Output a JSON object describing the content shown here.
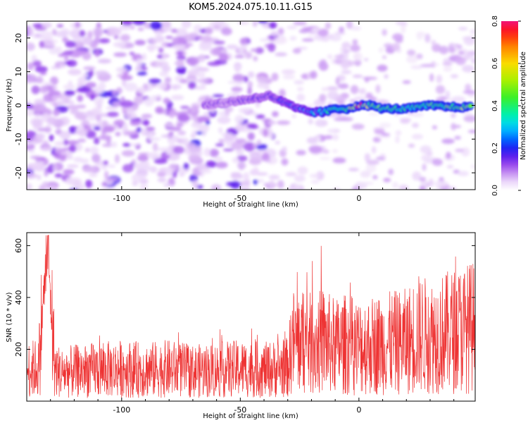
{
  "chart_data": [
    {
      "type": "heatmap",
      "title": "KOM5.2024.075.10.11.G15",
      "xlabel": "Height of straight line (km)",
      "ylabel": "Frequency (Hz)",
      "xlim": [
        -140,
        49
      ],
      "ylim": [
        -25,
        25
      ],
      "xticks": [
        -100,
        -50,
        0
      ],
      "yticks": [
        -20,
        -10,
        0,
        10,
        20
      ],
      "colorbar": {
        "label": "Normalized spectral amplitude",
        "range": [
          0.0,
          0.8
        ],
        "ticks": [
          "0.0",
          "0.2",
          "0.4",
          "0.6",
          "0.8"
        ]
      },
      "ridge": {
        "x": [
          -65,
          -55,
          -45,
          -38,
          -32,
          -26,
          -20,
          -15,
          -10,
          -5,
          0,
          5,
          10,
          20,
          30,
          40,
          47
        ],
        "y": [
          0,
          1,
          2,
          3,
          1,
          -1,
          -2,
          -2,
          -1,
          -1,
          0,
          0,
          -1,
          -1,
          0,
          -0.5,
          -0.5
        ],
        "peak_amplitude": [
          0.15,
          0.15,
          0.18,
          0.2,
          0.22,
          0.25,
          0.28,
          0.35,
          0.4,
          0.45,
          0.75,
          0.5,
          0.45,
          0.4,
          0.45,
          0.5,
          0.5
        ]
      },
      "grid": false
    },
    {
      "type": "line",
      "title": "",
      "xlabel": "Height of straight line (km)",
      "ylabel": "SNR (10 * v/v)",
      "xlim": [
        -140,
        49
      ],
      "ylim": [
        0,
        650
      ],
      "xticks": [
        -100,
        -50,
        0
      ],
      "yticks": [
        200,
        400,
        600
      ],
      "color": "#ee3333",
      "series": [
        {
          "x": [
            -140,
            -135,
            -133,
            -131,
            -130,
            -128,
            -125,
            -120,
            -110,
            -100,
            -90,
            -80,
            -70,
            -60,
            -50,
            -40,
            -35,
            -30,
            -28,
            -25,
            -20,
            -15,
            -10,
            -5,
            0,
            10,
            20,
            25,
            30,
            35,
            40,
            45,
            49
          ],
          "y": [
            120,
            130,
            390,
            600,
            380,
            120,
            110,
            115,
            120,
            125,
            120,
            125,
            115,
            120,
            125,
            120,
            125,
            130,
            230,
            230,
            220,
            230,
            210,
            220,
            210,
            220,
            230,
            260,
            250,
            260,
            270,
            280,
            290
          ]
        }
      ],
      "grid": false
    }
  ]
}
